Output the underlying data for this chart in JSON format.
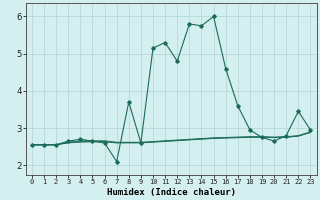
{
  "x": [
    0,
    1,
    2,
    3,
    4,
    5,
    6,
    7,
    8,
    9,
    10,
    11,
    12,
    13,
    14,
    15,
    16,
    17,
    18,
    19,
    20,
    21,
    22,
    23
  ],
  "y_main": [
    2.55,
    2.55,
    2.55,
    2.65,
    2.7,
    2.65,
    2.6,
    2.1,
    3.7,
    2.6,
    5.15,
    5.3,
    4.8,
    5.8,
    5.75,
    6.0,
    4.6,
    3.6,
    2.95,
    2.75,
    2.65,
    2.8,
    3.45,
    2.95
  ],
  "y_flat1": [
    2.55,
    2.55,
    2.55,
    2.6,
    2.62,
    2.63,
    2.63,
    2.6,
    2.6,
    2.6,
    2.62,
    2.64,
    2.66,
    2.68,
    2.7,
    2.72,
    2.73,
    2.74,
    2.75,
    2.75,
    2.74,
    2.75,
    2.78,
    2.88
  ],
  "y_flat2": [
    2.55,
    2.55,
    2.55,
    2.61,
    2.64,
    2.64,
    2.64,
    2.61,
    2.61,
    2.61,
    2.63,
    2.65,
    2.67,
    2.69,
    2.71,
    2.73,
    2.74,
    2.75,
    2.76,
    2.76,
    2.75,
    2.76,
    2.79,
    2.89
  ],
  "y_flat3": [
    2.55,
    2.55,
    2.55,
    2.62,
    2.66,
    2.66,
    2.66,
    2.62,
    2.62,
    2.62,
    2.64,
    2.66,
    2.68,
    2.7,
    2.72,
    2.74,
    2.75,
    2.76,
    2.77,
    2.77,
    2.76,
    2.77,
    2.8,
    2.9
  ],
  "line_color": "#1a6b5a",
  "bg_color": "#d4efef",
  "grid_color": "#b8d8d8",
  "ylabel_ticks": [
    2,
    3,
    4,
    5,
    6
  ],
  "xlabel_ticks": [
    0,
    1,
    2,
    3,
    4,
    5,
    6,
    7,
    8,
    9,
    10,
    11,
    12,
    13,
    14,
    15,
    16,
    17,
    18,
    19,
    20,
    21,
    22,
    23
  ],
  "xlabel": "Humidex (Indice chaleur)",
  "ylim": [
    1.75,
    6.35
  ],
  "xlim": [
    -0.5,
    23.5
  ]
}
